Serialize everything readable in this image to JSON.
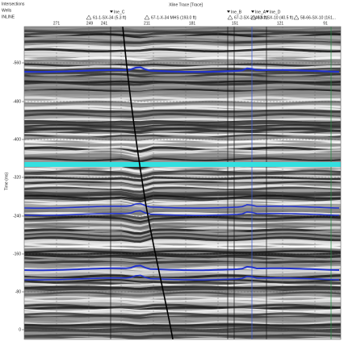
{
  "header": {
    "items": [
      "Intersections",
      "Wells",
      "INLINE"
    ],
    "title": "Xline Trace [Trace]"
  },
  "x_axis": {
    "labels": [
      "271",
      "249",
      "241",
      "211",
      "181",
      "151",
      "121",
      "91"
    ]
  },
  "wells": [
    "61-1-SX-34 (5.3 ft)",
    "67-1-X-34 MHS (193.0 ft)",
    "67-2-SX-3 (40.9 ft)",
    "63-2-SX-10 (40.5 ft)",
    "58-66-SX-10 (161..."
  ],
  "markers": [
    "Ine_C",
    "Ine_B",
    "Ine_A",
    "Ine_D"
  ],
  "y_axis": {
    "title": "Time (ms)",
    "ticks": [
      -560,
      -480,
      -400,
      -320,
      -240,
      -160,
      -80,
      0
    ]
  }
}
